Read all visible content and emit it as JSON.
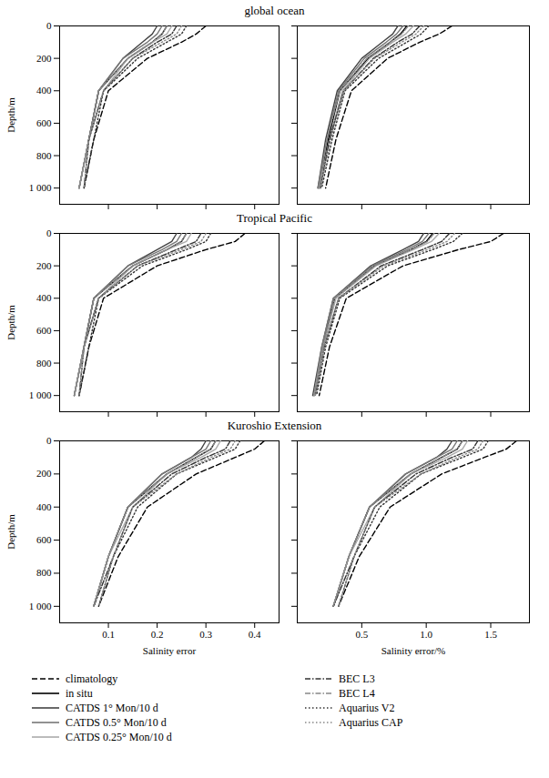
{
  "chart_data": [
    {
      "type": "line",
      "title": "global ocean",
      "ylabel": "Depth/m",
      "tick_labels": "y",
      "xlim": [
        0,
        0.45
      ],
      "xticks": [
        0.1,
        0.2,
        0.3,
        0.4
      ],
      "ylim": [
        1100,
        0
      ],
      "yticks": [
        0,
        200,
        400,
        600,
        800,
        {
          "value": 1000,
          "label": "1 000"
        }
      ],
      "y": [
        0,
        50,
        100,
        200,
        400,
        700,
        1000
      ],
      "series": [
        {
          "name": "climatology",
          "color": "#000000",
          "line_style": "dashed",
          "values": [
            0.3,
            0.28,
            0.25,
            0.18,
            0.1,
            0.07,
            0.05
          ]
        },
        {
          "name": "in situ",
          "color": "#000000",
          "line_style": "solid",
          "values": [
            0.22,
            0.21,
            0.19,
            0.14,
            0.08,
            0.06,
            0.04
          ]
        },
        {
          "name": "CATDS 1° Mon/10 d",
          "color": "#444444",
          "line_style": "solid",
          "values": [
            0.2,
            0.19,
            0.17,
            0.13,
            0.08,
            0.06,
            0.04
          ]
        },
        {
          "name": "CATDS 0.5° Mon/10 d",
          "color": "#777777",
          "line_style": "solid",
          "values": [
            0.21,
            0.2,
            0.18,
            0.13,
            0.08,
            0.06,
            0.04
          ]
        },
        {
          "name": "CATDS 0.25° Mon/10 d",
          "color": "#aaaaaa",
          "line_style": "solid",
          "values": [
            0.23,
            0.22,
            0.19,
            0.14,
            0.09,
            0.06,
            0.04
          ]
        },
        {
          "name": "BEC L3",
          "color": "#333333",
          "line_style": "dashdot",
          "values": [
            0.24,
            0.23,
            0.2,
            0.15,
            0.09,
            0.06,
            0.05
          ]
        },
        {
          "name": "BEC L4",
          "color": "#888888",
          "line_style": "dashdot",
          "values": [
            0.22,
            0.21,
            0.19,
            0.14,
            0.08,
            0.06,
            0.04
          ]
        },
        {
          "name": "Aquarius V2",
          "color": "#333333",
          "line_style": "dotted",
          "values": [
            0.26,
            0.25,
            0.22,
            0.16,
            0.09,
            0.07,
            0.05
          ]
        },
        {
          "name": "Aquarius CAP",
          "color": "#888888",
          "line_style": "dotted",
          "values": [
            0.25,
            0.24,
            0.21,
            0.15,
            0.09,
            0.06,
            0.05
          ]
        }
      ]
    },
    {
      "type": "line",
      "tick_labels": false,
      "xlim": [
        0,
        1.8
      ],
      "xticks": [
        0.5,
        {
          "value": 1,
          "label": "1.0"
        },
        1.5
      ],
      "ylim": [
        1100,
        0
      ],
      "yticks": [
        0,
        200,
        400,
        600,
        800,
        {
          "value": 1000,
          "label": "1 000"
        }
      ],
      "y": [
        0,
        50,
        100,
        200,
        400,
        700,
        1000
      ],
      "series": [
        {
          "name": "climatology",
          "color": "#000000",
          "line_style": "dashed",
          "values": [
            1.2,
            1.1,
            0.95,
            0.7,
            0.42,
            0.3,
            0.22
          ]
        },
        {
          "name": "in situ",
          "color": "#000000",
          "line_style": "solid",
          "values": [
            0.85,
            0.8,
            0.72,
            0.55,
            0.33,
            0.24,
            0.17
          ]
        },
        {
          "name": "CATDS 1° Mon/10 d",
          "color": "#444444",
          "line_style": "solid",
          "values": [
            0.78,
            0.74,
            0.66,
            0.5,
            0.31,
            0.22,
            0.16
          ]
        },
        {
          "name": "CATDS 0.5° Mon/10 d",
          "color": "#777777",
          "line_style": "solid",
          "values": [
            0.82,
            0.77,
            0.69,
            0.52,
            0.32,
            0.23,
            0.16
          ]
        },
        {
          "name": "CATDS 0.25° Mon/10 d",
          "color": "#aaaaaa",
          "line_style": "solid",
          "values": [
            0.9,
            0.84,
            0.74,
            0.56,
            0.35,
            0.25,
            0.17
          ]
        },
        {
          "name": "BEC L3",
          "color": "#333333",
          "line_style": "dashdot",
          "values": [
            0.95,
            0.89,
            0.78,
            0.59,
            0.36,
            0.25,
            0.18
          ]
        },
        {
          "name": "BEC L4",
          "color": "#888888",
          "line_style": "dashdot",
          "values": [
            0.86,
            0.81,
            0.72,
            0.54,
            0.33,
            0.23,
            0.17
          ]
        },
        {
          "name": "Aquarius V2",
          "color": "#333333",
          "line_style": "dotted",
          "values": [
            1.02,
            0.96,
            0.85,
            0.63,
            0.37,
            0.27,
            0.19
          ]
        },
        {
          "name": "Aquarius CAP",
          "color": "#888888",
          "line_style": "dotted",
          "values": [
            0.98,
            0.92,
            0.81,
            0.6,
            0.36,
            0.26,
            0.18
          ]
        }
      ]
    },
    {
      "type": "line",
      "title": "Tropical Pacific",
      "ylabel": "Depth/m",
      "tick_labels": "y",
      "xlim": [
        0,
        0.45
      ],
      "xticks": [
        0.1,
        0.2,
        0.3,
        0.4
      ],
      "ylim": [
        1100,
        0
      ],
      "yticks": [
        0,
        200,
        400,
        600,
        800,
        {
          "value": 1000,
          "label": "1 000"
        }
      ],
      "y": [
        0,
        50,
        100,
        200,
        400,
        700,
        1000
      ],
      "series": [
        {
          "name": "climatology",
          "color": "#000000",
          "line_style": "dashed",
          "values": [
            0.38,
            0.36,
            0.3,
            0.2,
            0.09,
            0.06,
            0.04
          ]
        },
        {
          "name": "in situ",
          "color": "#000000",
          "line_style": "solid",
          "values": [
            0.26,
            0.25,
            0.22,
            0.15,
            0.07,
            0.05,
            0.03
          ]
        },
        {
          "name": "CATDS 1° Mon/10 d",
          "color": "#444444",
          "line_style": "solid",
          "values": [
            0.24,
            0.23,
            0.2,
            0.14,
            0.07,
            0.05,
            0.03
          ]
        },
        {
          "name": "CATDS 0.5° Mon/10 d",
          "color": "#777777",
          "line_style": "solid",
          "values": [
            0.25,
            0.24,
            0.21,
            0.14,
            0.07,
            0.05,
            0.03
          ]
        },
        {
          "name": "CATDS 0.25° Mon/10 d",
          "color": "#aaaaaa",
          "line_style": "solid",
          "values": [
            0.27,
            0.26,
            0.22,
            0.15,
            0.08,
            0.05,
            0.03
          ]
        },
        {
          "name": "BEC L3",
          "color": "#333333",
          "line_style": "dashdot",
          "values": [
            0.29,
            0.28,
            0.24,
            0.16,
            0.08,
            0.05,
            0.04
          ]
        },
        {
          "name": "BEC L4",
          "color": "#888888",
          "line_style": "dashdot",
          "values": [
            0.26,
            0.25,
            0.22,
            0.15,
            0.07,
            0.05,
            0.03
          ]
        },
        {
          "name": "Aquarius V2",
          "color": "#333333",
          "line_style": "dotted",
          "values": [
            0.31,
            0.3,
            0.26,
            0.17,
            0.08,
            0.06,
            0.04
          ]
        },
        {
          "name": "Aquarius CAP",
          "color": "#888888",
          "line_style": "dotted",
          "values": [
            0.3,
            0.29,
            0.25,
            0.16,
            0.08,
            0.05,
            0.04
          ]
        }
      ]
    },
    {
      "type": "line",
      "tick_labels": false,
      "xlim": [
        0,
        1.8
      ],
      "xticks": [
        0.5,
        {
          "value": 1,
          "label": "1.0"
        },
        1.5
      ],
      "ylim": [
        1100,
        0
      ],
      "yticks": [
        0,
        200,
        400,
        600,
        800,
        {
          "value": 1000,
          "label": "1 000"
        }
      ],
      "y": [
        0,
        50,
        100,
        200,
        400,
        700,
        1000
      ],
      "series": [
        {
          "name": "climatology",
          "color": "#000000",
          "line_style": "dashed",
          "values": [
            1.6,
            1.5,
            1.25,
            0.82,
            0.38,
            0.25,
            0.17
          ]
        },
        {
          "name": "in situ",
          "color": "#000000",
          "line_style": "solid",
          "values": [
            1.05,
            1.0,
            0.88,
            0.6,
            0.29,
            0.2,
            0.13
          ]
        },
        {
          "name": "CATDS 1° Mon/10 d",
          "color": "#444444",
          "line_style": "solid",
          "values": [
            0.98,
            0.94,
            0.82,
            0.57,
            0.28,
            0.19,
            0.12
          ]
        },
        {
          "name": "CATDS 0.5° Mon/10 d",
          "color": "#777777",
          "line_style": "solid",
          "values": [
            1.02,
            0.97,
            0.85,
            0.58,
            0.28,
            0.19,
            0.13
          ]
        },
        {
          "name": "CATDS 0.25° Mon/10 d",
          "color": "#aaaaaa",
          "line_style": "solid",
          "values": [
            1.1,
            1.04,
            0.9,
            0.61,
            0.3,
            0.2,
            0.13
          ]
        },
        {
          "name": "BEC L3",
          "color": "#333333",
          "line_style": "dashdot",
          "values": [
            1.18,
            1.12,
            0.97,
            0.65,
            0.32,
            0.21,
            0.14
          ]
        },
        {
          "name": "BEC L4",
          "color": "#888888",
          "line_style": "dashdot",
          "values": [
            1.06,
            1.01,
            0.88,
            0.6,
            0.29,
            0.2,
            0.13
          ]
        },
        {
          "name": "Aquarius V2",
          "color": "#333333",
          "line_style": "dotted",
          "values": [
            1.28,
            1.21,
            1.05,
            0.7,
            0.33,
            0.22,
            0.15
          ]
        },
        {
          "name": "Aquarius CAP",
          "color": "#888888",
          "line_style": "dotted",
          "values": [
            1.22,
            1.16,
            1.01,
            0.67,
            0.32,
            0.21,
            0.14
          ]
        }
      ]
    },
    {
      "type": "line",
      "title": "Kuroshio Extension",
      "ylabel": "Depth/m",
      "xlabel": "Salinity error",
      "tick_labels": true,
      "xlim": [
        0,
        0.45
      ],
      "xticks": [
        0.1,
        0.2,
        0.3,
        0.4
      ],
      "ylim": [
        1100,
        0
      ],
      "yticks": [
        0,
        200,
        400,
        600,
        800,
        {
          "value": 1000,
          "label": "1 000"
        }
      ],
      "y": [
        0,
        50,
        100,
        200,
        400,
        700,
        1000
      ],
      "series": [
        {
          "name": "climatology",
          "color": "#000000",
          "line_style": "dashed",
          "values": [
            0.42,
            0.4,
            0.36,
            0.28,
            0.18,
            0.12,
            0.08
          ]
        },
        {
          "name": "in situ",
          "color": "#000000",
          "line_style": "solid",
          "values": [
            0.32,
            0.31,
            0.28,
            0.22,
            0.14,
            0.1,
            0.07
          ]
        },
        {
          "name": "CATDS 1° Mon/10 d",
          "color": "#444444",
          "line_style": "solid",
          "values": [
            0.3,
            0.29,
            0.27,
            0.21,
            0.14,
            0.1,
            0.07
          ]
        },
        {
          "name": "CATDS 0.5° Mon/10 d",
          "color": "#777777",
          "line_style": "solid",
          "values": [
            0.31,
            0.3,
            0.27,
            0.21,
            0.14,
            0.1,
            0.07
          ]
        },
        {
          "name": "CATDS 0.25° Mon/10 d",
          "color": "#aaaaaa",
          "line_style": "solid",
          "values": [
            0.33,
            0.32,
            0.29,
            0.22,
            0.15,
            0.1,
            0.07
          ]
        },
        {
          "name": "BEC L3",
          "color": "#333333",
          "line_style": "dashdot",
          "values": [
            0.35,
            0.34,
            0.3,
            0.23,
            0.15,
            0.11,
            0.07
          ]
        },
        {
          "name": "BEC L4",
          "color": "#888888",
          "line_style": "dashdot",
          "values": [
            0.32,
            0.31,
            0.28,
            0.22,
            0.14,
            0.1,
            0.07
          ]
        },
        {
          "name": "Aquarius V2",
          "color": "#333333",
          "line_style": "dotted",
          "values": [
            0.37,
            0.36,
            0.32,
            0.24,
            0.16,
            0.11,
            0.08
          ]
        },
        {
          "name": "Aquarius CAP",
          "color": "#888888",
          "line_style": "dotted",
          "values": [
            0.36,
            0.35,
            0.31,
            0.24,
            0.15,
            0.11,
            0.08
          ]
        }
      ]
    },
    {
      "type": "line",
      "xlabel": "Salinity error/%",
      "tick_labels": "x",
      "legend": "bottom",
      "xlim": [
        0,
        1.8
      ],
      "xticks": [
        0.5,
        {
          "value": 1,
          "label": "1.0"
        },
        1.5
      ],
      "ylim": [
        1100,
        0
      ],
      "yticks": [
        0,
        200,
        400,
        600,
        800,
        {
          "value": 1000,
          "label": "1 000"
        }
      ],
      "y": [
        0,
        50,
        100,
        200,
        400,
        700,
        1000
      ],
      "series": [
        {
          "name": "climatology",
          "color": "#000000",
          "line_style": "dashed",
          "values": [
            1.7,
            1.62,
            1.45,
            1.12,
            0.72,
            0.48,
            0.32
          ]
        },
        {
          "name": "in situ",
          "color": "#000000",
          "line_style": "solid",
          "values": [
            1.28,
            1.24,
            1.12,
            0.88,
            0.56,
            0.4,
            0.28
          ]
        },
        {
          "name": "CATDS 1° Mon/10 d",
          "color": "#444444",
          "line_style": "solid",
          "values": [
            1.2,
            1.16,
            1.08,
            0.84,
            0.56,
            0.4,
            0.28
          ]
        },
        {
          "name": "CATDS 0.5° Mon/10 d",
          "color": "#777777",
          "line_style": "solid",
          "values": [
            1.24,
            1.2,
            1.08,
            0.84,
            0.56,
            0.4,
            0.28
          ]
        },
        {
          "name": "CATDS 0.25° Mon/10 d",
          "color": "#aaaaaa",
          "line_style": "solid",
          "values": [
            1.32,
            1.28,
            1.16,
            0.88,
            0.6,
            0.4,
            0.28
          ]
        },
        {
          "name": "BEC L3",
          "color": "#333333",
          "line_style": "dashdot",
          "values": [
            1.4,
            1.36,
            1.2,
            0.92,
            0.6,
            0.44,
            0.28
          ]
        },
        {
          "name": "BEC L4",
          "color": "#888888",
          "line_style": "dashdot",
          "values": [
            1.28,
            1.24,
            1.12,
            0.88,
            0.56,
            0.4,
            0.28
          ]
        },
        {
          "name": "Aquarius V2",
          "color": "#333333",
          "line_style": "dotted",
          "values": [
            1.48,
            1.44,
            1.28,
            0.96,
            0.64,
            0.44,
            0.32
          ]
        },
        {
          "name": "Aquarius CAP",
          "color": "#888888",
          "line_style": "dotted",
          "values": [
            1.44,
            1.4,
            1.24,
            0.96,
            0.6,
            0.44,
            0.32
          ]
        }
      ]
    }
  ]
}
